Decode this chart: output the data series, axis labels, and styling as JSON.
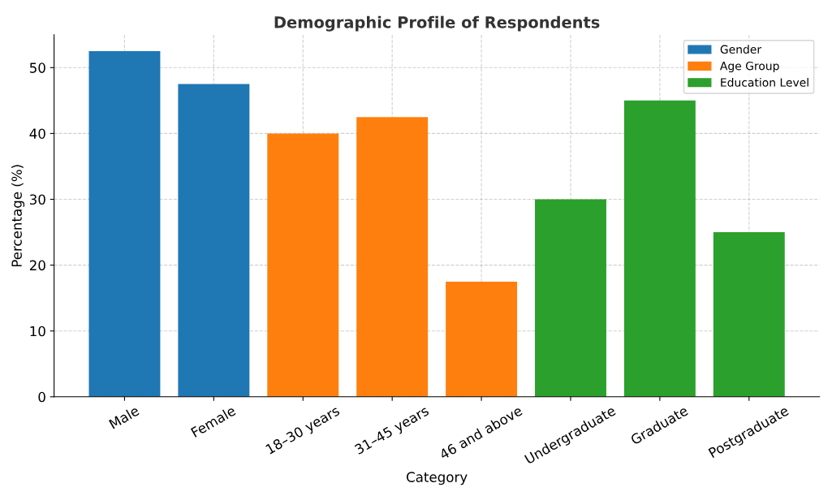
{
  "chart_data": {
    "type": "bar",
    "title": "Demographic Profile of Respondents",
    "xlabel": "Category",
    "ylabel": "Percentage (%)",
    "categories": [
      "Male",
      "Female",
      "18–30 years",
      "31–45 years",
      "46 and above",
      "Undergraduate",
      "Graduate",
      "Postgraduate"
    ],
    "series": [
      {
        "name": "Gender",
        "color": "#1f77b4",
        "values": [
          52.5,
          47.5,
          null,
          null,
          null,
          null,
          null,
          null
        ]
      },
      {
        "name": "Age Group",
        "color": "#ff7f0e",
        "values": [
          null,
          null,
          40,
          42.5,
          17.5,
          null,
          null,
          null
        ]
      },
      {
        "name": "Education Level",
        "color": "#2ca02c",
        "values": [
          null,
          null,
          null,
          null,
          null,
          30,
          45,
          25
        ]
      }
    ],
    "ylim": [
      0,
      55
    ],
    "yticks": [
      0,
      10,
      20,
      30,
      40,
      50
    ],
    "grid": true,
    "legend": "top right"
  }
}
